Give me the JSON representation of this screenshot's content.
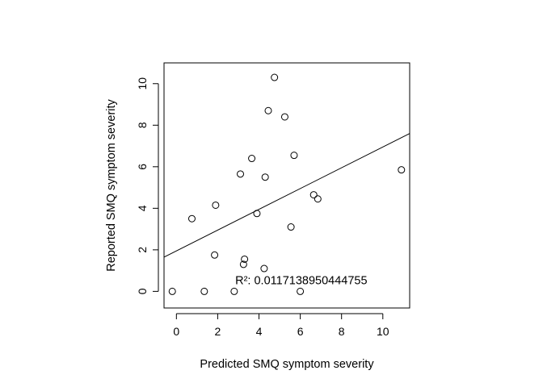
{
  "chart_data": {
    "type": "scatter",
    "title": "",
    "xlabel": "Predicted SMQ symptom severity",
    "ylabel": "Reported SMQ symptom severity",
    "xlim": [
      -0.6,
      11.3
    ],
    "ylim": [
      -0.8,
      11.0
    ],
    "x_ticks": [
      0,
      2,
      4,
      6,
      8,
      10
    ],
    "y_ticks": [
      0,
      2,
      4,
      6,
      8,
      10
    ],
    "x_tick_labels": [
      "0",
      "2",
      "4",
      "6",
      "8",
      "10"
    ],
    "y_tick_labels": [
      "0",
      "2",
      "4",
      "6",
      "8",
      "10"
    ],
    "grid": false,
    "marker": "open-circle",
    "points": [
      {
        "x": -0.2,
        "y": 0.0
      },
      {
        "x": 0.75,
        "y": 3.5
      },
      {
        "x": 1.35,
        "y": 0.0
      },
      {
        "x": 1.85,
        "y": 1.75
      },
      {
        "x": 1.9,
        "y": 4.15
      },
      {
        "x": 2.8,
        "y": 0.0
      },
      {
        "x": 3.1,
        "y": 5.65
      },
      {
        "x": 3.25,
        "y": 1.3
      },
      {
        "x": 3.3,
        "y": 1.55
      },
      {
        "x": 3.65,
        "y": 6.4
      },
      {
        "x": 3.9,
        "y": 3.75
      },
      {
        "x": 4.25,
        "y": 1.1
      },
      {
        "x": 4.3,
        "y": 5.5
      },
      {
        "x": 4.45,
        "y": 8.7
      },
      {
        "x": 4.75,
        "y": 10.3
      },
      {
        "x": 5.25,
        "y": 8.4
      },
      {
        "x": 5.55,
        "y": 3.1
      },
      {
        "x": 5.7,
        "y": 6.55
      },
      {
        "x": 6.0,
        "y": 0.0
      },
      {
        "x": 6.65,
        "y": 4.65
      },
      {
        "x": 6.85,
        "y": 4.45
      },
      {
        "x": 10.9,
        "y": 5.85
      }
    ],
    "fit_line": {
      "intercept": 1.95,
      "slope": 0.5
    },
    "annotation": {
      "text": "R²:  0.0117138950444755",
      "x": 2.85,
      "y": 0.5
    }
  }
}
